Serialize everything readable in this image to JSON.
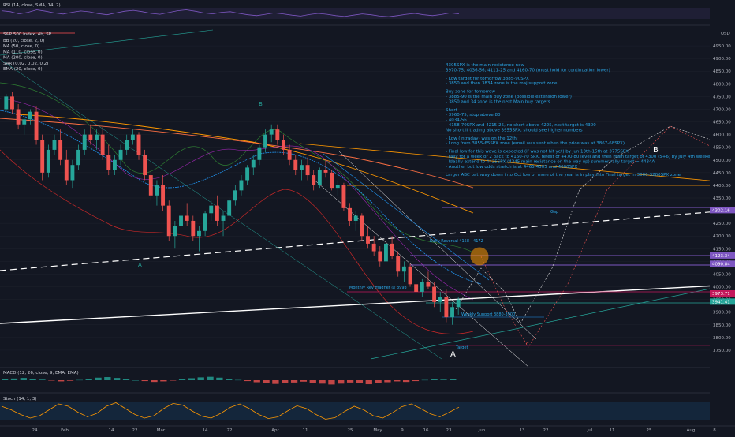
{
  "chart_data": {
    "type": "candlestick",
    "symbol_title": "S&P 500 Index, 4h, SP",
    "price_axis": {
      "ticks": [
        "4950.00",
        "4900.00",
        "4850.00",
        "4800.00",
        "4750.00",
        "4700.00",
        "4650.00",
        "4600.00",
        "4550.00",
        "4500.00",
        "4450.00",
        "4400.00",
        "4350.00",
        "4300.00",
        "4250.00",
        "4200.00",
        "4150.00",
        "4100.00",
        "4050.00",
        "4000.00",
        "3950.00",
        "3900.00",
        "3850.00",
        "3800.00",
        "3750.00"
      ],
      "top_label": "USD",
      "ylim": [
        3700,
        5000
      ],
      "badges": [
        {
          "text": "4302.16",
          "value": 4302.16,
          "color": "#7e57c2"
        },
        {
          "text": "4123.34",
          "value": 4123.34,
          "color": "#7e57c2"
        },
        {
          "text": "4090.84",
          "value": 4090.84,
          "color": "#7e57c2"
        },
        {
          "text": "3973.71",
          "value": 3973.71,
          "color": "#c2185b"
        },
        {
          "text": "3941.41",
          "value": 3941.41,
          "color": "#26a69a"
        }
      ]
    },
    "time_axis": [
      "24",
      "Feb",
      "14",
      "22",
      "Mar",
      "14",
      "22",
      "Apr",
      "11",
      "25",
      "May",
      "9",
      "16",
      "23",
      "Jun",
      "13",
      "22",
      "Jul",
      "11",
      "25",
      "Aug",
      "8"
    ],
    "indicators_legend": [
      "BB (20, close, 2, 0)",
      "MA (50, close, 0)",
      "MA (110, close, 0)",
      "MA (200, close, 0)",
      "SAR (0.02, 0.02, 0.2)",
      "EMA (20, close, 0)"
    ],
    "rsi": {
      "label": "RSI (14, close, SMA, 14, 2)",
      "ticks": [
        "75.00",
        "50.00",
        "25.00"
      ],
      "values": [
        62,
        58,
        48,
        55,
        66,
        60,
        52,
        47,
        55,
        61,
        57,
        49,
        44,
        52,
        60,
        64,
        58,
        50,
        46,
        54,
        62,
        66,
        60,
        52,
        48,
        55,
        58,
        50,
        44,
        40,
        46,
        52,
        48,
        42,
        38,
        45,
        50,
        46,
        40,
        36,
        42,
        48,
        44,
        38,
        35,
        40,
        46,
        50,
        44,
        40,
        45,
        52,
        48
      ]
    },
    "macd": {
      "label": "MACD (12, 26, close, 9, EMA, EMA)",
      "ticks": [
        "0.00",
        "-50.00"
      ],
      "values": [
        8,
        12,
        16,
        10,
        4,
        -2,
        -8,
        -4,
        2,
        10,
        18,
        22,
        16,
        8,
        0,
        -6,
        -12,
        -8,
        -2,
        6,
        14,
        20,
        24,
        18,
        10,
        2,
        -6,
        -14,
        -20,
        -26,
        -22,
        -16,
        -10,
        -18,
        -24,
        -30,
        -24,
        -16,
        -20,
        -28,
        -22,
        -14,
        -8,
        -12,
        -6,
        2,
        6,
        4,
        8
      ]
    },
    "stoch": {
      "label": "Stoch (14, 1, 3)",
      "ticks": [
        "50.00",
        "0.00"
      ],
      "values": [
        70,
        55,
        35,
        20,
        30,
        55,
        80,
        70,
        45,
        25,
        40,
        70,
        85,
        60,
        35,
        20,
        30,
        60,
        82,
        75,
        50,
        28,
        20,
        40,
        65,
        80,
        60,
        35,
        18,
        25,
        50,
        72,
        60,
        35,
        15,
        22,
        48,
        70,
        55,
        30,
        20,
        42,
        68,
        80,
        60,
        38,
        25,
        45,
        66
      ]
    },
    "candles": [
      [
        4700,
        4760,
        4690,
        4750
      ],
      [
        4750,
        4770,
        4680,
        4700
      ],
      [
        4700,
        4720,
        4620,
        4640
      ],
      [
        4640,
        4680,
        4600,
        4660
      ],
      [
        4660,
        4700,
        4640,
        4690
      ],
      [
        4690,
        4710,
        4560,
        4580
      ],
      [
        4580,
        4600,
        4420,
        4450
      ],
      [
        4450,
        4560,
        4430,
        4540
      ],
      [
        4540,
        4600,
        4520,
        4580
      ],
      [
        4580,
        4620,
        4480,
        4500
      ],
      [
        4500,
        4540,
        4400,
        4420
      ],
      [
        4420,
        4500,
        4390,
        4480
      ],
      [
        4480,
        4560,
        4460,
        4540
      ],
      [
        4540,
        4620,
        4520,
        4600
      ],
      [
        4600,
        4640,
        4560,
        4580
      ],
      [
        4580,
        4620,
        4540,
        4600
      ],
      [
        4600,
        4630,
        4500,
        4520
      ],
      [
        4520,
        4560,
        4440,
        4460
      ],
      [
        4460,
        4520,
        4440,
        4500
      ],
      [
        4500,
        4560,
        4480,
        4540
      ],
      [
        4540,
        4600,
        4520,
        4580
      ],
      [
        4580,
        4620,
        4560,
        4600
      ],
      [
        4600,
        4610,
        4500,
        4520
      ],
      [
        4520,
        4540,
        4420,
        4440
      ],
      [
        4440,
        4460,
        4340,
        4360
      ],
      [
        4360,
        4420,
        4320,
        4400
      ],
      [
        4400,
        4440,
        4300,
        4320
      ],
      [
        4320,
        4340,
        4180,
        4200
      ],
      [
        4200,
        4260,
        4150,
        4240
      ],
      [
        4240,
        4300,
        4220,
        4280
      ],
      [
        4280,
        4330,
        4240,
        4260
      ],
      [
        4260,
        4280,
        4180,
        4200
      ],
      [
        4200,
        4240,
        4140,
        4220
      ],
      [
        4220,
        4300,
        4200,
        4290
      ],
      [
        4290,
        4340,
        4260,
        4320
      ],
      [
        4320,
        4360,
        4240,
        4260
      ],
      [
        4260,
        4300,
        4200,
        4280
      ],
      [
        4280,
        4350,
        4260,
        4340
      ],
      [
        4340,
        4400,
        4320,
        4380
      ],
      [
        4380,
        4440,
        4360,
        4420
      ],
      [
        4420,
        4480,
        4400,
        4470
      ],
      [
        4470,
        4520,
        4440,
        4500
      ],
      [
        4500,
        4560,
        4480,
        4550
      ],
      [
        4550,
        4620,
        4530,
        4600
      ],
      [
        4600,
        4640,
        4570,
        4620
      ],
      [
        4620,
        4640,
        4560,
        4580
      ],
      [
        4580,
        4600,
        4520,
        4540
      ],
      [
        4540,
        4560,
        4480,
        4500
      ],
      [
        4500,
        4520,
        4440,
        4460
      ],
      [
        4460,
        4500,
        4420,
        4480
      ],
      [
        4480,
        4510,
        4420,
        4440
      ],
      [
        4440,
        4460,
        4380,
        4400
      ],
      [
        4400,
        4470,
        4390,
        4460
      ],
      [
        4460,
        4500,
        4430,
        4450
      ],
      [
        4450,
        4460,
        4380,
        4390
      ],
      [
        4390,
        4420,
        4360,
        4400
      ],
      [
        4400,
        4410,
        4300,
        4310
      ],
      [
        4310,
        4330,
        4240,
        4260
      ],
      [
        4260,
        4300,
        4220,
        4280
      ],
      [
        4280,
        4290,
        4180,
        4200
      ],
      [
        4200,
        4240,
        4150,
        4170
      ],
      [
        4170,
        4200,
        4120,
        4140
      ],
      [
        4140,
        4160,
        4080,
        4100
      ],
      [
        4100,
        4180,
        4090,
        4170
      ],
      [
        4170,
        4200,
        4110,
        4120
      ],
      [
        4120,
        4140,
        4040,
        4060
      ],
      [
        4060,
        4100,
        4020,
        4080
      ],
      [
        4080,
        4090,
        4000,
        4010
      ],
      [
        4010,
        4040,
        3960,
        3980
      ],
      [
        3980,
        4030,
        3960,
        4020
      ],
      [
        4020,
        4060,
        3990,
        4000
      ],
      [
        4000,
        4020,
        3920,
        3940
      ],
      [
        3940,
        3980,
        3900,
        3960
      ],
      [
        3960,
        3990,
        3860,
        3880
      ],
      [
        3880,
        3940,
        3850,
        3920
      ],
      [
        3920,
        3960,
        3890,
        3950
      ]
    ],
    "annotations": {
      "letters": [
        "A",
        "B",
        "A",
        "B",
        "C"
      ],
      "levels": [
        "Monthly Rev magnet @ 3993",
        "Daily Reversal 4158 - 4172",
        "Gap",
        "Target",
        "Weekly Support 3880-3900"
      ],
      "notes": [
        "4305SPX is the main resistance now",
        "3970-75; 4036-56; 4111-25 and 4160-70 (must hold for continuation lower)",
        "- Low target for tomorrow 3885-90SPX",
        "- 3850 and then 3834 zone is the maj support zone",
        "Buy zone for tomorrow",
        "- 3885-90 is the main buy zone (possible extension lower)",
        "- 3850 and 34 zone is the next Main buy targets",
        "Short",
        "- 3960-75, stop above 80",
        "- 4034-56",
        "- 4158-70SPX and 4215-25, no short above 4225, next target is 4300",
        "No short if trading above 3955SPX, should see higher numbers",
        "- Low (Intraday) was on the 12th;",
        "- Long from 3855-65SPX zone (email was sent when the price was at 3867-68SPX)",
        "- Final low for this wave is expected (if was not hit yet) by Jun 13th-15th at 3775SPX",
        "- rally for a week or 2 back to 4160-70 SPX, retest of 4470-80 level and then main target of 4300 (5+6) by July 4th weekend,",
        "- Ideally extend to 4425SPX (4345 main resistance on the way up) summer rally target ~ 4434A",
        "- Another but low odds stretch is at 4465-4505 and 4600SPX",
        "Larger ABC pathway down into Oct low or more of the year is in play into Final target in 3000-3200SPX zone"
      ]
    },
    "colors": {
      "background": "#131722",
      "up": "#26a69a",
      "down": "#ef5350",
      "white_line": "#ffffff",
      "orange_ma": "#ff9800",
      "purple": "#7e57c2",
      "note_text": "#2aa6e6",
      "bb_line": "#2e7d32"
    }
  }
}
